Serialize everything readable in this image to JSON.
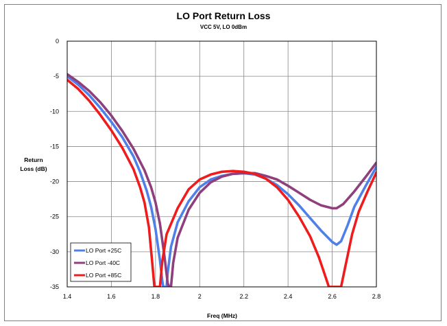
{
  "chart_data": {
    "type": "line",
    "title": "LO Port Return Loss",
    "subtitle": "VCC 5V, LO 0dBm",
    "xlabel": "Freq (MHz)",
    "ylabel": [
      "Return",
      "Loss (dB)"
    ],
    "xlim": [
      1.4,
      2.8
    ],
    "ylim": [
      -35,
      0
    ],
    "xticks": [
      1.4,
      1.6,
      1.8,
      2,
      2.2,
      2.4,
      2.6,
      2.8
    ],
    "xtick_labels": [
      "1.4",
      "1.6",
      "1.8",
      "2",
      "2.2",
      "2.4",
      "2.6",
      "2.8"
    ],
    "yticks": [
      0,
      -5,
      -10,
      -15,
      -20,
      -25,
      -30,
      -35
    ],
    "ytick_labels": [
      "0",
      "-5",
      "-10",
      "-15",
      "-20",
      "-25",
      "-30",
      "-35"
    ],
    "grid": true,
    "legend_position": "bottom-left",
    "series": [
      {
        "name": "LO Port +25C",
        "color": "#4f7fe8",
        "points": [
          [
            1.4,
            -5.0
          ],
          [
            1.45,
            -6.2
          ],
          [
            1.5,
            -7.7
          ],
          [
            1.55,
            -9.5
          ],
          [
            1.6,
            -11.5
          ],
          [
            1.65,
            -13.7
          ],
          [
            1.7,
            -16.4
          ],
          [
            1.73,
            -18.6
          ],
          [
            1.76,
            -21.3
          ],
          [
            1.78,
            -23.6
          ],
          [
            1.8,
            -26.8
          ],
          [
            1.82,
            -31.2
          ],
          [
            1.83,
            -34.0
          ],
          [
            1.835,
            -35
          ],
          [
            1.85,
            -35
          ],
          [
            1.855,
            -33.0
          ],
          [
            1.87,
            -29.3
          ],
          [
            1.9,
            -25.8
          ],
          [
            1.95,
            -22.8
          ],
          [
            2.0,
            -20.8
          ],
          [
            2.05,
            -19.7
          ],
          [
            2.1,
            -19.2
          ],
          [
            2.15,
            -18.9
          ],
          [
            2.2,
            -18.8
          ],
          [
            2.25,
            -19.0
          ],
          [
            2.3,
            -19.6
          ],
          [
            2.35,
            -20.5
          ],
          [
            2.4,
            -21.8
          ],
          [
            2.45,
            -23.4
          ],
          [
            2.5,
            -25.2
          ],
          [
            2.55,
            -27.0
          ],
          [
            2.6,
            -28.6
          ],
          [
            2.62,
            -29.0
          ],
          [
            2.64,
            -28.5
          ],
          [
            2.67,
            -26.2
          ],
          [
            2.7,
            -23.6
          ],
          [
            2.75,
            -20.7
          ],
          [
            2.8,
            -17.9
          ]
        ]
      },
      {
        "name": "LO Port -40C",
        "color": "#8e3f7c",
        "points": [
          [
            1.4,
            -4.7
          ],
          [
            1.45,
            -5.8
          ],
          [
            1.5,
            -7.1
          ],
          [
            1.55,
            -8.7
          ],
          [
            1.6,
            -10.6
          ],
          [
            1.65,
            -12.8
          ],
          [
            1.7,
            -15.3
          ],
          [
            1.75,
            -18.4
          ],
          [
            1.78,
            -20.8
          ],
          [
            1.8,
            -23.0
          ],
          [
            1.82,
            -26.0
          ],
          [
            1.84,
            -30.5
          ],
          [
            1.855,
            -34.5
          ],
          [
            1.862,
            -35
          ],
          [
            1.87,
            -35
          ],
          [
            1.88,
            -31.6
          ],
          [
            1.9,
            -28.0
          ],
          [
            1.95,
            -24.0
          ],
          [
            2.0,
            -21.6
          ],
          [
            2.05,
            -20.1
          ],
          [
            2.1,
            -19.3
          ],
          [
            2.15,
            -18.9
          ],
          [
            2.2,
            -18.8
          ],
          [
            2.25,
            -18.8
          ],
          [
            2.3,
            -19.2
          ],
          [
            2.35,
            -19.7
          ],
          [
            2.4,
            -20.6
          ],
          [
            2.45,
            -21.6
          ],
          [
            2.5,
            -22.6
          ],
          [
            2.55,
            -23.4
          ],
          [
            2.6,
            -23.8
          ],
          [
            2.62,
            -23.8
          ],
          [
            2.65,
            -23.2
          ],
          [
            2.7,
            -21.4
          ],
          [
            2.75,
            -19.4
          ],
          [
            2.8,
            -17.3
          ]
        ]
      },
      {
        "name": "LO Port +85C",
        "color": "#ee1c1c",
        "points": [
          [
            1.4,
            -5.5
          ],
          [
            1.45,
            -6.8
          ],
          [
            1.5,
            -8.5
          ],
          [
            1.55,
            -10.5
          ],
          [
            1.6,
            -12.7
          ],
          [
            1.65,
            -15.2
          ],
          [
            1.7,
            -18.2
          ],
          [
            1.73,
            -20.8
          ],
          [
            1.75,
            -23.0
          ],
          [
            1.77,
            -26.5
          ],
          [
            1.785,
            -31.5
          ],
          [
            1.795,
            -35
          ],
          [
            1.82,
            -35
          ],
          [
            1.83,
            -31.5
          ],
          [
            1.85,
            -27.5
          ],
          [
            1.9,
            -23.8
          ],
          [
            1.95,
            -21.1
          ],
          [
            2.0,
            -19.7
          ],
          [
            2.05,
            -19.0
          ],
          [
            2.1,
            -18.6
          ],
          [
            2.15,
            -18.5
          ],
          [
            2.2,
            -18.6
          ],
          [
            2.25,
            -18.9
          ],
          [
            2.3,
            -19.6
          ],
          [
            2.35,
            -20.8
          ],
          [
            2.4,
            -22.6
          ],
          [
            2.45,
            -25.0
          ],
          [
            2.5,
            -27.8
          ],
          [
            2.54,
            -30.8
          ],
          [
            2.57,
            -33.6
          ],
          [
            2.585,
            -35
          ],
          [
            2.64,
            -35
          ],
          [
            2.66,
            -32.0
          ],
          [
            2.69,
            -27.5
          ],
          [
            2.72,
            -24.3
          ],
          [
            2.76,
            -21.4
          ],
          [
            2.8,
            -18.7
          ]
        ]
      }
    ]
  }
}
